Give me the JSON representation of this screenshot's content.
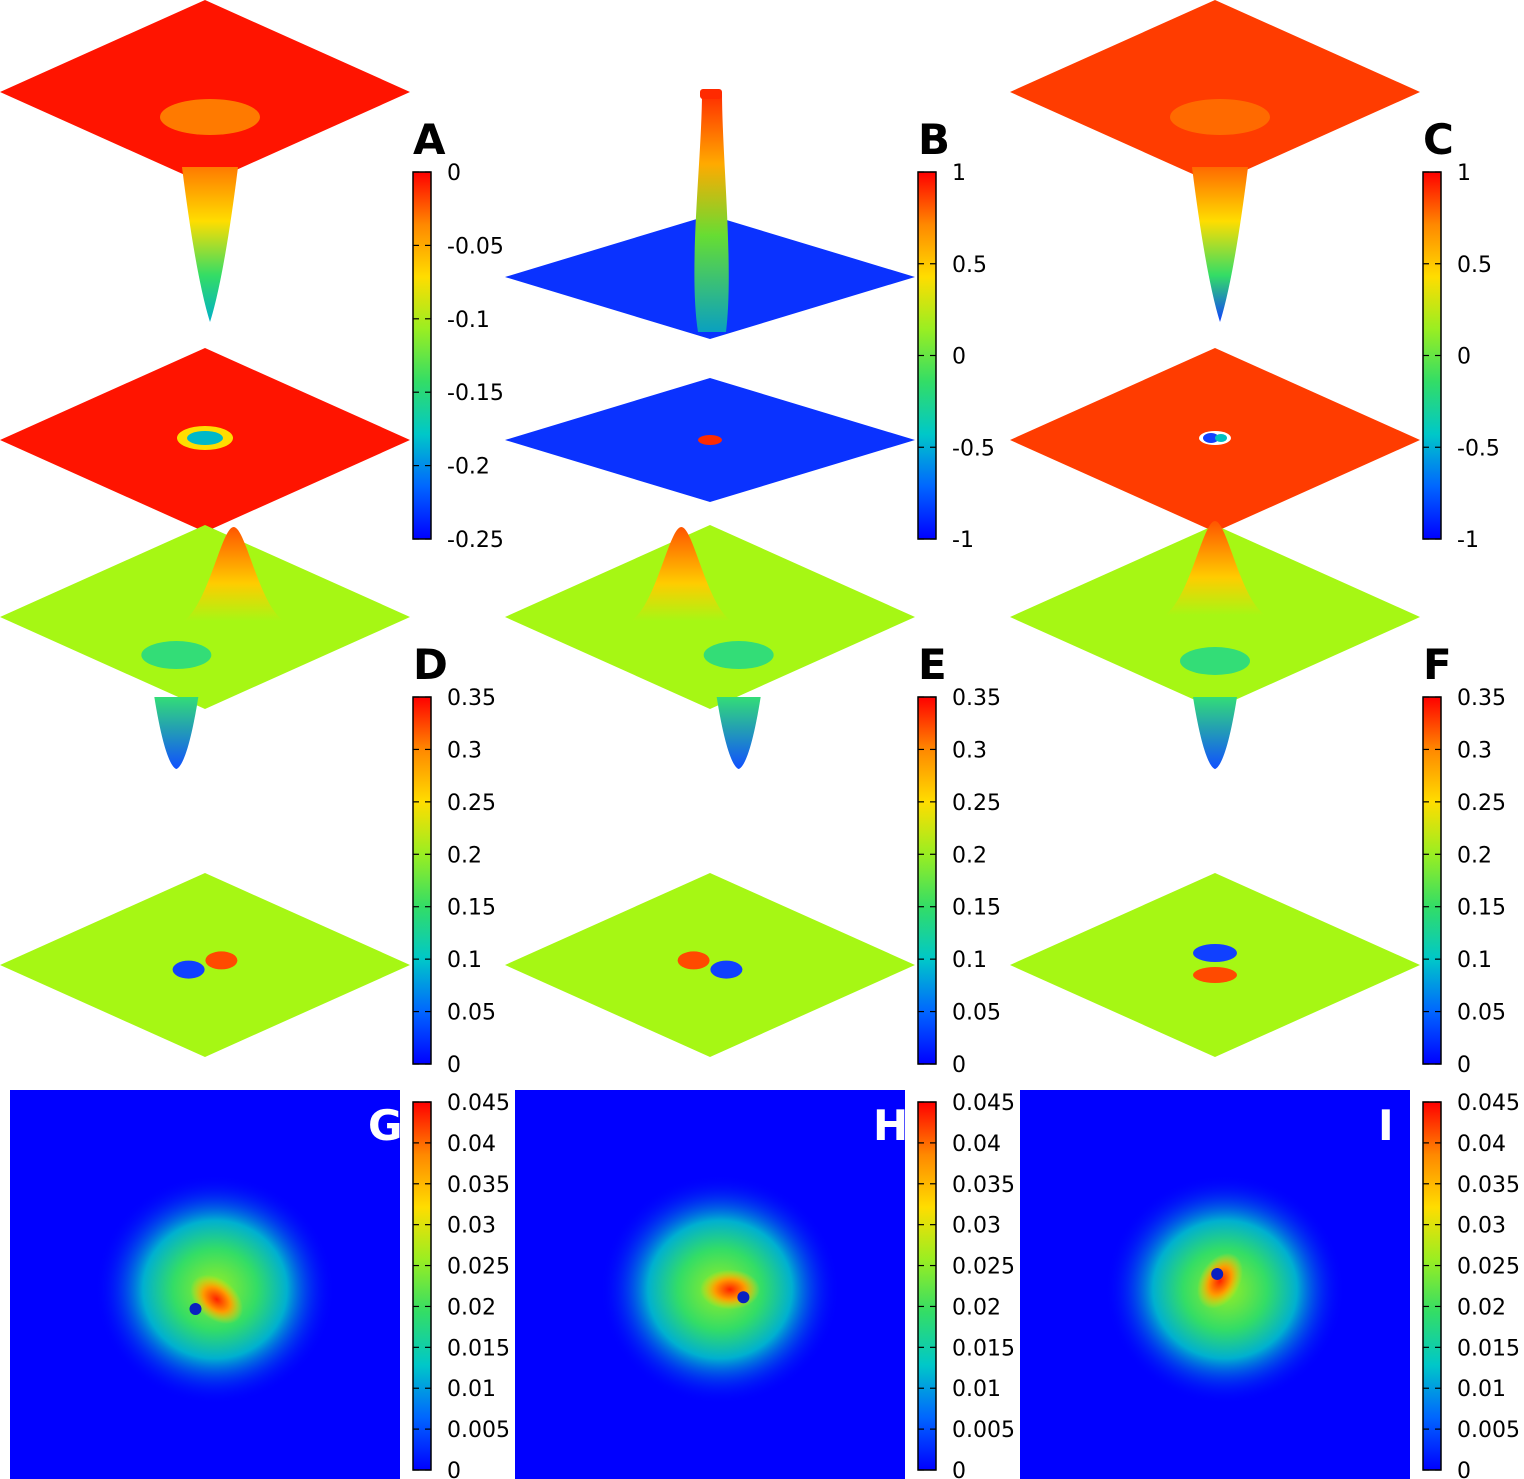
{
  "colormap": [
    "#0000ff",
    "#0066ff",
    "#00c8c8",
    "#33dd66",
    "#99ee22",
    "#ffdd00",
    "#ff8800",
    "#ff0000"
  ],
  "plane_color_default": "#a6f714",
  "chart_data": [
    {
      "panel": "A",
      "type": "surface-3d",
      "letter": "A",
      "cbar_ticks": [
        "0",
        "-0.05",
        "-0.1",
        "-0.15",
        "-0.2",
        "-0.25"
      ],
      "zrange": [
        -0.25,
        0
      ],
      "plane_color": "#ff1400",
      "feature": "dip",
      "extreme_color": "#00b0c8",
      "hole_color": "#ff7a00",
      "map_feature": "ring"
    },
    {
      "panel": "B",
      "type": "surface-3d",
      "letter": "B",
      "cbar_ticks": [
        "1",
        "0.5",
        "0",
        "-0.5",
        "-1"
      ],
      "zrange": [
        -1,
        1
      ],
      "plane_color": "#0a32ff",
      "feature": "spike",
      "extreme_color": "#ff2a00",
      "map_feature": "dot"
    },
    {
      "panel": "C",
      "type": "surface-3d",
      "letter": "C",
      "cbar_ticks": [
        "1",
        "0.5",
        "0",
        "-0.5",
        "-1"
      ],
      "zrange": [
        -1,
        1
      ],
      "plane_color": "#ff3c00",
      "feature": "dip",
      "extreme_color": "#1040ff",
      "hole_color": "#ff6a00",
      "map_feature": "split-dot"
    },
    {
      "panel": "D",
      "type": "surface-3d",
      "letter": "D",
      "cbar_ticks": [
        "0.35",
        "0.3",
        "0.25",
        "0.2",
        "0.15",
        "0.1",
        "0.05",
        "0"
      ],
      "zrange": [
        0,
        0.35
      ],
      "plane_color": "#a6f714",
      "feature": "dipole",
      "dipole_angle": 35,
      "map_feature": "dipole"
    },
    {
      "panel": "E",
      "type": "surface-3d",
      "letter": "E",
      "cbar_ticks": [
        "0.35",
        "0.3",
        "0.25",
        "0.2",
        "0.15",
        "0.1",
        "0.05",
        "0"
      ],
      "zrange": [
        0,
        0.35
      ],
      "plane_color": "#a6f714",
      "feature": "dipole",
      "dipole_angle": 145,
      "map_feature": "dipole"
    },
    {
      "panel": "F",
      "type": "surface-3d",
      "letter": "F",
      "cbar_ticks": [
        "0.35",
        "0.3",
        "0.25",
        "0.2",
        "0.15",
        "0.1",
        "0.05",
        "0"
      ],
      "zrange": [
        0,
        0.35
      ],
      "plane_color": "#a6f714",
      "feature": "dipole",
      "dipole_angle": 90,
      "map_feature": "dipole-v"
    },
    {
      "panel": "G",
      "type": "heatmap",
      "letter": "G",
      "cbar_ticks": [
        "0.045",
        "0.04",
        "0.035",
        "0.03",
        "0.025",
        "0.02",
        "0.015",
        "0.01",
        "0.005",
        "0"
      ],
      "zrange": [
        0,
        0.045
      ],
      "crescent_angle": -40,
      "spot": [
        -0.05,
        0.05
      ]
    },
    {
      "panel": "H",
      "type": "heatmap",
      "letter": "H",
      "cbar_ticks": [
        "0.045",
        "0.04",
        "0.035",
        "0.03",
        "0.025",
        "0.02",
        "0.015",
        "0.01",
        "0.005",
        "0"
      ],
      "zrange": [
        0,
        0.045
      ],
      "crescent_angle": 180,
      "spot": [
        0.06,
        0.02
      ]
    },
    {
      "panel": "I",
      "type": "heatmap",
      "letter": "I",
      "cbar_ticks": [
        "0.045",
        "0.04",
        "0.035",
        "0.03",
        "0.025",
        "0.02",
        "0.015",
        "0.01",
        "0.005",
        "0"
      ],
      "zrange": [
        0,
        0.045
      ],
      "crescent_angle": 60,
      "spot": [
        -0.02,
        -0.04
      ]
    }
  ]
}
